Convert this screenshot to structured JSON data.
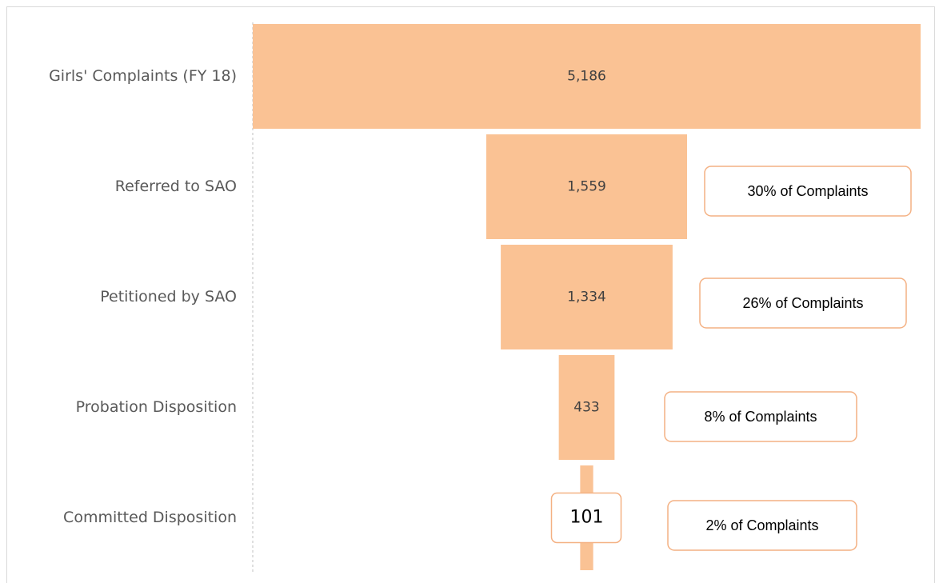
{
  "chart_data": {
    "type": "funnel",
    "categories": [
      "Girls' Complaints (FY 18)",
      "Referred to SAO",
      "Petitioned by SAO",
      "Probation Disposition",
      "Committed Disposition"
    ],
    "values": [
      5186,
      1559,
      1334,
      433,
      101
    ],
    "value_labels": [
      "5,186",
      "1,559",
      "1,334",
      "433",
      "101"
    ],
    "color": "#fac294",
    "annotations": [
      "30% of Complaints",
      "26% of Complaints",
      "8% of Complaints",
      "2% of Complaints"
    ]
  }
}
